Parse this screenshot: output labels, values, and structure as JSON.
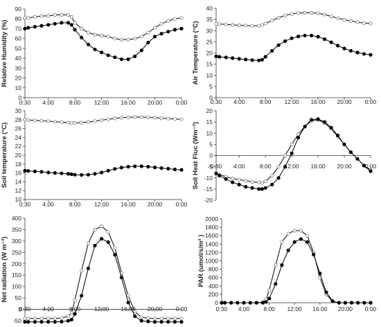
{
  "chart_data": [
    {
      "type": "line",
      "ylabel": "Relative Humidity (%)",
      "ylim": [
        0,
        90
      ],
      "yticks": [
        0,
        10,
        20,
        30,
        40,
        50,
        60,
        70,
        80,
        90
      ],
      "x": [
        0.5,
        1,
        2,
        3,
        4,
        5,
        6,
        7,
        7.5,
        8,
        9,
        10,
        11,
        12,
        13,
        14,
        15,
        16,
        17,
        18,
        19,
        20,
        21,
        22,
        23,
        24
      ],
      "xticks": [
        "0:30",
        "4:00",
        "8:00",
        "12:00",
        "16:00",
        "20:00",
        "0:00"
      ],
      "xtick_hours": [
        0.5,
        4,
        8,
        12,
        16,
        20,
        24
      ],
      "grid": false,
      "legend": "none",
      "series": [
        {
          "marker": "open-circle",
          "values": [
            81,
            81,
            82,
            83,
            83,
            84,
            84,
            84,
            82,
            76,
            70,
            66,
            64,
            63,
            62,
            60,
            59,
            59,
            60,
            62,
            66,
            71,
            75,
            78,
            80,
            81
          ]
        },
        {
          "marker": "filled-circle",
          "values": [
            70,
            71,
            72,
            73,
            74,
            75,
            76,
            76,
            74,
            69,
            61,
            54,
            49,
            46,
            43,
            41,
            39,
            39,
            42,
            48,
            56,
            62,
            65,
            67,
            69,
            70
          ]
        }
      ]
    },
    {
      "type": "line",
      "ylabel": "Air Temperature (°C)",
      "ylim": [
        0,
        40
      ],
      "yticks": [
        0,
        5,
        10,
        15,
        20,
        25,
        30,
        35,
        40
      ],
      "x": [
        0.5,
        1,
        2,
        3,
        4,
        5,
        6,
        7,
        7.5,
        8,
        9,
        10,
        11,
        12,
        13,
        14,
        15,
        16,
        17,
        18,
        19,
        20,
        21,
        22,
        23,
        24
      ],
      "xticks": [
        "0:30",
        "4:00",
        "8:00",
        "12:00",
        "16:00",
        "20:00",
        "0:00"
      ],
      "xtick_hours": [
        0.5,
        4,
        8,
        12,
        16,
        20,
        24
      ],
      "grid": false,
      "legend": "none",
      "series": [
        {
          "marker": "open-circle",
          "values": [
            33,
            33,
            32.8,
            32.6,
            32.4,
            32.3,
            32.2,
            32.2,
            32.5,
            33.2,
            34.5,
            35.8,
            36.8,
            37.5,
            37.9,
            38,
            38,
            37.8,
            37.2,
            36.4,
            35.6,
            34.9,
            34.3,
            33.8,
            33.4,
            33.2
          ]
        },
        {
          "marker": "filled-circle",
          "values": [
            18.5,
            18.3,
            18,
            17.7,
            17.4,
            17.1,
            16.8,
            16.7,
            17,
            18.3,
            21,
            23.5,
            25.3,
            26.6,
            27.4,
            27.8,
            27.8,
            27.3,
            26.2,
            24.8,
            23.3,
            22,
            21,
            20.2,
            19.6,
            19.2
          ]
        }
      ]
    },
    {
      "type": "line",
      "ylabel": "Soil temperature (°C)",
      "ylim": [
        10,
        30
      ],
      "yticks": [
        10,
        12,
        14,
        16,
        18,
        20,
        22,
        24,
        26,
        28,
        30
      ],
      "x": [
        0.5,
        1,
        2,
        3,
        4,
        5,
        6,
        7,
        7.5,
        8,
        9,
        10,
        11,
        12,
        13,
        14,
        15,
        16,
        17,
        18,
        19,
        20,
        21,
        22,
        23,
        24
      ],
      "xticks": [
        "0:30",
        "4:00",
        "8:00",
        "12:00",
        "16:00",
        "20:00",
        "0:00"
      ],
      "xtick_hours": [
        0.5,
        4,
        8,
        12,
        16,
        20,
        24
      ],
      "grid": false,
      "legend": "none",
      "series": [
        {
          "marker": "open-circle",
          "values": [
            28,
            27.95,
            27.85,
            27.75,
            27.65,
            27.55,
            27.45,
            27.35,
            27.3,
            27.3,
            27.35,
            27.5,
            27.7,
            27.9,
            28.1,
            28.3,
            28.45,
            28.55,
            28.6,
            28.6,
            28.55,
            28.45,
            28.35,
            28.25,
            28.15,
            28.1
          ]
        },
        {
          "marker": "filled-circle",
          "values": [
            16.5,
            16.45,
            16.35,
            16.25,
            16.1,
            16,
            15.9,
            15.8,
            15.7,
            15.6,
            15.55,
            15.6,
            15.8,
            16.1,
            16.5,
            16.9,
            17.2,
            17.4,
            17.5,
            17.5,
            17.4,
            17.25,
            17.1,
            16.95,
            16.8,
            16.7
          ]
        }
      ]
    },
    {
      "type": "line",
      "ylabel": "Soil Heat Fluc (Wm⁻²)",
      "ylim": [
        -20,
        20
      ],
      "yticks": [
        -20,
        -15,
        -10,
        -5,
        0,
        5,
        10,
        15,
        20
      ],
      "x": [
        0.5,
        1,
        2,
        3,
        4,
        5,
        6,
        7,
        7.5,
        8,
        9,
        10,
        11,
        12,
        13,
        14,
        15,
        16,
        17,
        18,
        19,
        20,
        21,
        22,
        23,
        24
      ],
      "xticks": [
        "0:30",
        "4:00",
        "8:00",
        "12:00",
        "16:00",
        "20:00",
        "0:00"
      ],
      "xtick_hours": [
        0.5,
        4,
        8,
        12,
        16,
        20,
        24
      ],
      "grid": false,
      "legend": "none",
      "series": [
        {
          "marker": "open-circle",
          "values": [
            -8,
            -8.5,
            -9.5,
            -10.3,
            -10.8,
            -11.3,
            -11.8,
            -12,
            -12.2,
            -11.5,
            -9,
            -5,
            0,
            5,
            9.5,
            13,
            15.5,
            16,
            14.5,
            12,
            8.5,
            5,
            1.5,
            -1.5,
            -4.5,
            -6.5
          ]
        },
        {
          "marker": "filled-circle",
          "values": [
            -8,
            -9,
            -10.5,
            -12,
            -13,
            -14,
            -14.5,
            -15,
            -15,
            -14.5,
            -13,
            -10,
            -5,
            1,
            8,
            13,
            16,
            16.3,
            15,
            12.5,
            9,
            5,
            1.5,
            -1.5,
            -4.5,
            -7
          ]
        }
      ]
    },
    {
      "type": "line",
      "ylabel": "Net radiation (W m⁻²)",
      "ylim": [
        -50,
        400
      ],
      "yticks": [
        -50,
        0,
        50,
        100,
        150,
        200,
        250,
        300,
        350,
        400
      ],
      "x": [
        0.5,
        1,
        2,
        3,
        4,
        5,
        6,
        7,
        7.5,
        8,
        9,
        10,
        11,
        12,
        13,
        14,
        15,
        16,
        17,
        18,
        19,
        20,
        21,
        22,
        23,
        24
      ],
      "xticks": [
        "0:30",
        "4:00",
        "8:00",
        "12:00",
        "16:00",
        "20:00",
        "0:00"
      ],
      "xtick_hours": [
        0.5,
        4,
        8,
        12,
        16,
        20,
        24
      ],
      "grid": false,
      "legend": "none",
      "series": [
        {
          "marker": "open-circle",
          "values": [
            -40,
            -40,
            -40,
            -40,
            -40,
            -40,
            -38,
            -30,
            -15,
            40,
            170,
            290,
            350,
            365,
            340,
            270,
            160,
            60,
            -10,
            -35,
            -38,
            -40,
            -40,
            -40,
            -40,
            -40
          ]
        },
        {
          "marker": "filled-circle",
          "values": [
            -55,
            -55,
            -55,
            -55,
            -55,
            -55,
            -54,
            -50,
            -45,
            -20,
            60,
            180,
            280,
            310,
            295,
            240,
            140,
            30,
            -30,
            -50,
            -53,
            -55,
            -55,
            -55,
            -55,
            -55
          ]
        }
      ]
    },
    {
      "type": "line",
      "ylabel": "PAR (umol/s/m² )",
      "ylim": [
        0,
        2000
      ],
      "yticks": [
        0,
        200,
        400,
        600,
        800,
        1000,
        1200,
        1400,
        1600,
        1800,
        2000
      ],
      "x": [
        0.5,
        1,
        2,
        3,
        4,
        5,
        6,
        7,
        7.5,
        8,
        9,
        10,
        11,
        12,
        13,
        14,
        15,
        16,
        17,
        18,
        19,
        20,
        21,
        22,
        23,
        24
      ],
      "xticks": [
        "0:30",
        "4:00",
        "8:00",
        "12:00",
        "16:00",
        "20:00",
        "0:00"
      ],
      "xtick_hours": [
        0.5,
        4,
        8,
        12,
        16,
        20,
        24
      ],
      "grid": false,
      "legend": "none",
      "series": [
        {
          "marker": "open-circle",
          "values": [
            0,
            0,
            0,
            0,
            0,
            0,
            0,
            10,
            80,
            300,
            900,
            1450,
            1650,
            1720,
            1720,
            1600,
            1200,
            600,
            200,
            30,
            0,
            0,
            0,
            0,
            0,
            0
          ]
        },
        {
          "marker": "filled-circle",
          "values": [
            0,
            0,
            0,
            0,
            0,
            0,
            0,
            0,
            20,
            100,
            450,
            900,
            1250,
            1450,
            1520,
            1450,
            1150,
            700,
            250,
            40,
            0,
            0,
            0,
            0,
            0,
            0
          ]
        }
      ]
    }
  ]
}
